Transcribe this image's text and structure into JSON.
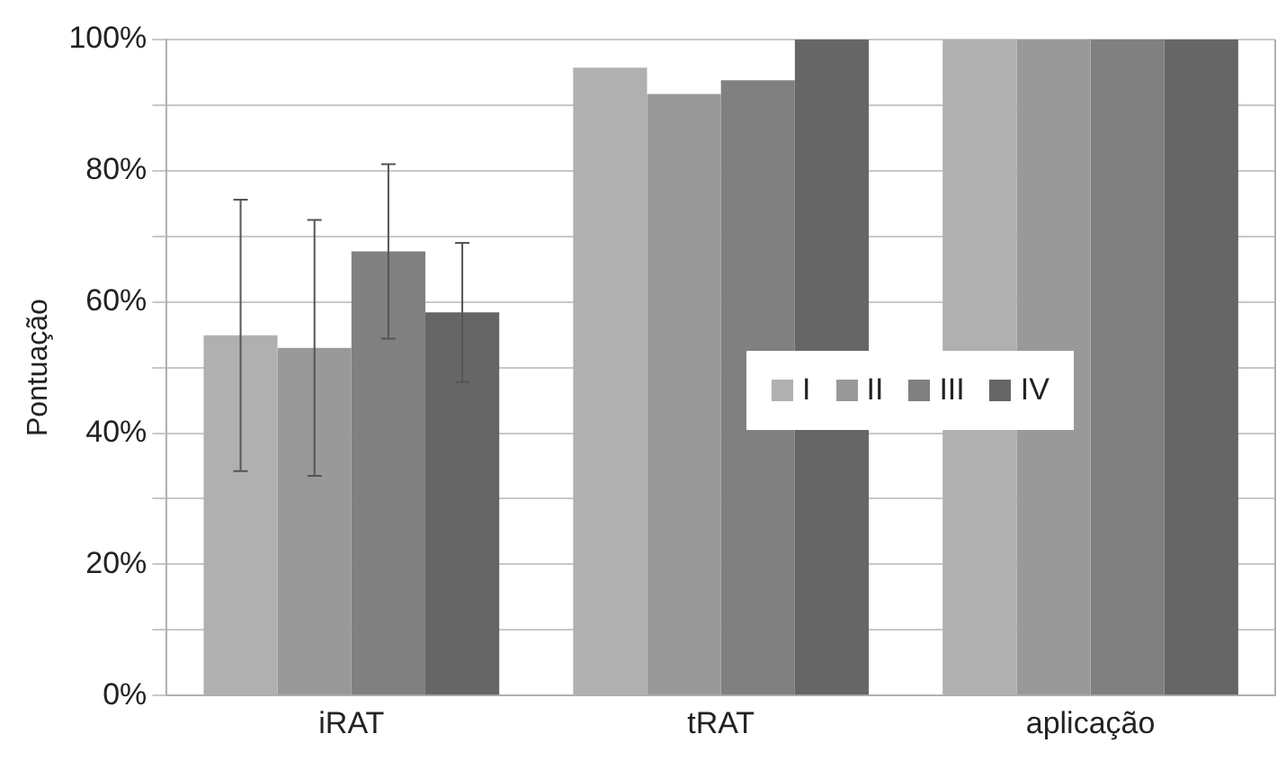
{
  "chart_data": {
    "type": "bar",
    "ylabel": "Pontuação",
    "categories": [
      "iRAT",
      "tRAT",
      "aplicação"
    ],
    "series": [
      {
        "name": "I",
        "color": "#b0b0b0",
        "values": [
          54.9,
          95.7,
          100
        ],
        "errors": [
          20.7,
          null,
          null
        ]
      },
      {
        "name": "II",
        "color": "#999999",
        "values": [
          53.0,
          91.7,
          100
        ],
        "errors": [
          19.5,
          null,
          null
        ]
      },
      {
        "name": "III",
        "color": "#808080",
        "values": [
          67.7,
          93.8,
          100
        ],
        "errors": [
          13.3,
          null,
          null
        ]
      },
      {
        "name": "IV",
        "color": "#666666",
        "values": [
          58.4,
          100,
          100
        ],
        "errors": [
          10.6,
          null,
          null
        ]
      }
    ],
    "ylim": [
      0,
      100
    ],
    "yticks": [
      {
        "value": 0,
        "label": "0%"
      },
      {
        "value": 10,
        "label": null
      },
      {
        "value": 20,
        "label": "20%"
      },
      {
        "value": 30,
        "label": null
      },
      {
        "value": 40,
        "label": "40%"
      },
      {
        "value": 50,
        "label": null
      },
      {
        "value": 60,
        "label": "60%"
      },
      {
        "value": 70,
        "label": null
      },
      {
        "value": 80,
        "label": "80%"
      },
      {
        "value": 90,
        "label": null
      },
      {
        "value": 100,
        "label": "100%"
      }
    ],
    "grid": "y",
    "legend": "right"
  }
}
